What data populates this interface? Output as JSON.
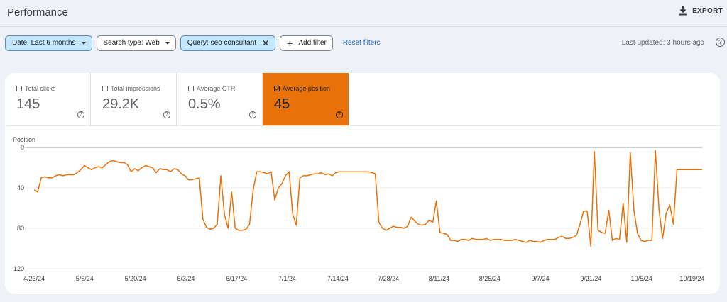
{
  "header": {
    "title": "Performance",
    "export_label": "EXPORT",
    "export_icon": "download-icon"
  },
  "filters": {
    "date": "Date: Last 6 months",
    "search_type": "Search type: Web",
    "query": "Query: seo consultant",
    "add_filter": "Add filter",
    "reset": "Reset filters"
  },
  "last_updated": "Last updated: 3 hours ago",
  "metrics": [
    {
      "label": "Total clicks",
      "value": "145",
      "checked": false
    },
    {
      "label": "Total impressions",
      "value": "29.2K",
      "checked": false
    },
    {
      "label": "Average CTR",
      "value": "0.5%",
      "checked": false
    },
    {
      "label": "Average position",
      "value": "45",
      "checked": true
    }
  ],
  "colors": {
    "accent": "#e8710a",
    "active_chip": "#c2e7ff",
    "link": "#1a62c6",
    "background": "#eef1f6"
  },
  "chart_data": {
    "type": "line",
    "ylabel": "Position",
    "ylim": [
      0,
      120
    ],
    "y_inverted": true,
    "y_ticks": [
      0,
      40,
      80,
      120
    ],
    "x_ticks": [
      "4/23/24",
      "5/6/24",
      "5/20/24",
      "6/3/24",
      "6/17/24",
      "7/1/24",
      "7/14/24",
      "7/28/24",
      "8/11/24",
      "8/25/24",
      "9/7/24",
      "9/21/24",
      "10/5/24",
      "10/19/24"
    ],
    "grid": true,
    "series": [
      {
        "color": "#e8710a",
        "values": [
          42,
          44,
          30,
          29,
          30,
          30,
          28,
          27,
          28,
          27,
          27,
          27,
          25,
          22,
          18,
          20,
          22,
          20,
          19,
          20,
          17,
          14,
          13,
          14,
          15,
          15,
          17,
          24,
          21,
          23,
          20,
          18,
          19,
          20,
          25,
          21,
          22,
          22,
          24,
          21,
          22,
          26,
          28,
          32,
          32,
          31,
          30,
          71,
          79,
          81,
          80,
          76,
          28,
          66,
          80,
          44,
          80,
          82,
          82,
          81,
          76,
          42,
          24,
          24,
          25,
          26,
          24,
          52,
          40,
          36,
          28,
          24,
          66,
          77,
          30,
          28,
          28,
          27,
          26,
          26,
          25,
          27,
          26,
          28,
          25,
          24,
          24,
          24,
          24,
          24,
          24,
          24,
          24,
          24,
          25,
          26,
          74,
          80,
          82,
          80,
          78,
          79,
          79,
          80,
          78,
          69,
          73,
          76,
          77,
          76,
          72,
          74,
          53,
          84,
          85,
          86,
          92,
          92,
          93,
          91,
          91,
          92,
          90,
          91,
          91,
          91,
          90,
          92,
          91,
          91,
          91,
          92,
          92,
          92,
          91,
          92,
          93,
          94,
          92,
          93,
          93,
          94,
          92,
          91,
          91,
          91,
          89,
          88,
          90,
          90,
          89,
          87,
          76,
          63,
          63,
          98,
          4,
          82,
          84,
          85,
          62,
          92,
          90,
          91,
          55,
          94,
          5,
          62,
          85,
          92,
          93,
          92,
          92,
          3,
          62,
          90,
          65,
          57,
          76,
          22,
          22,
          22,
          22,
          22,
          22,
          22,
          22
        ]
      }
    ]
  }
}
